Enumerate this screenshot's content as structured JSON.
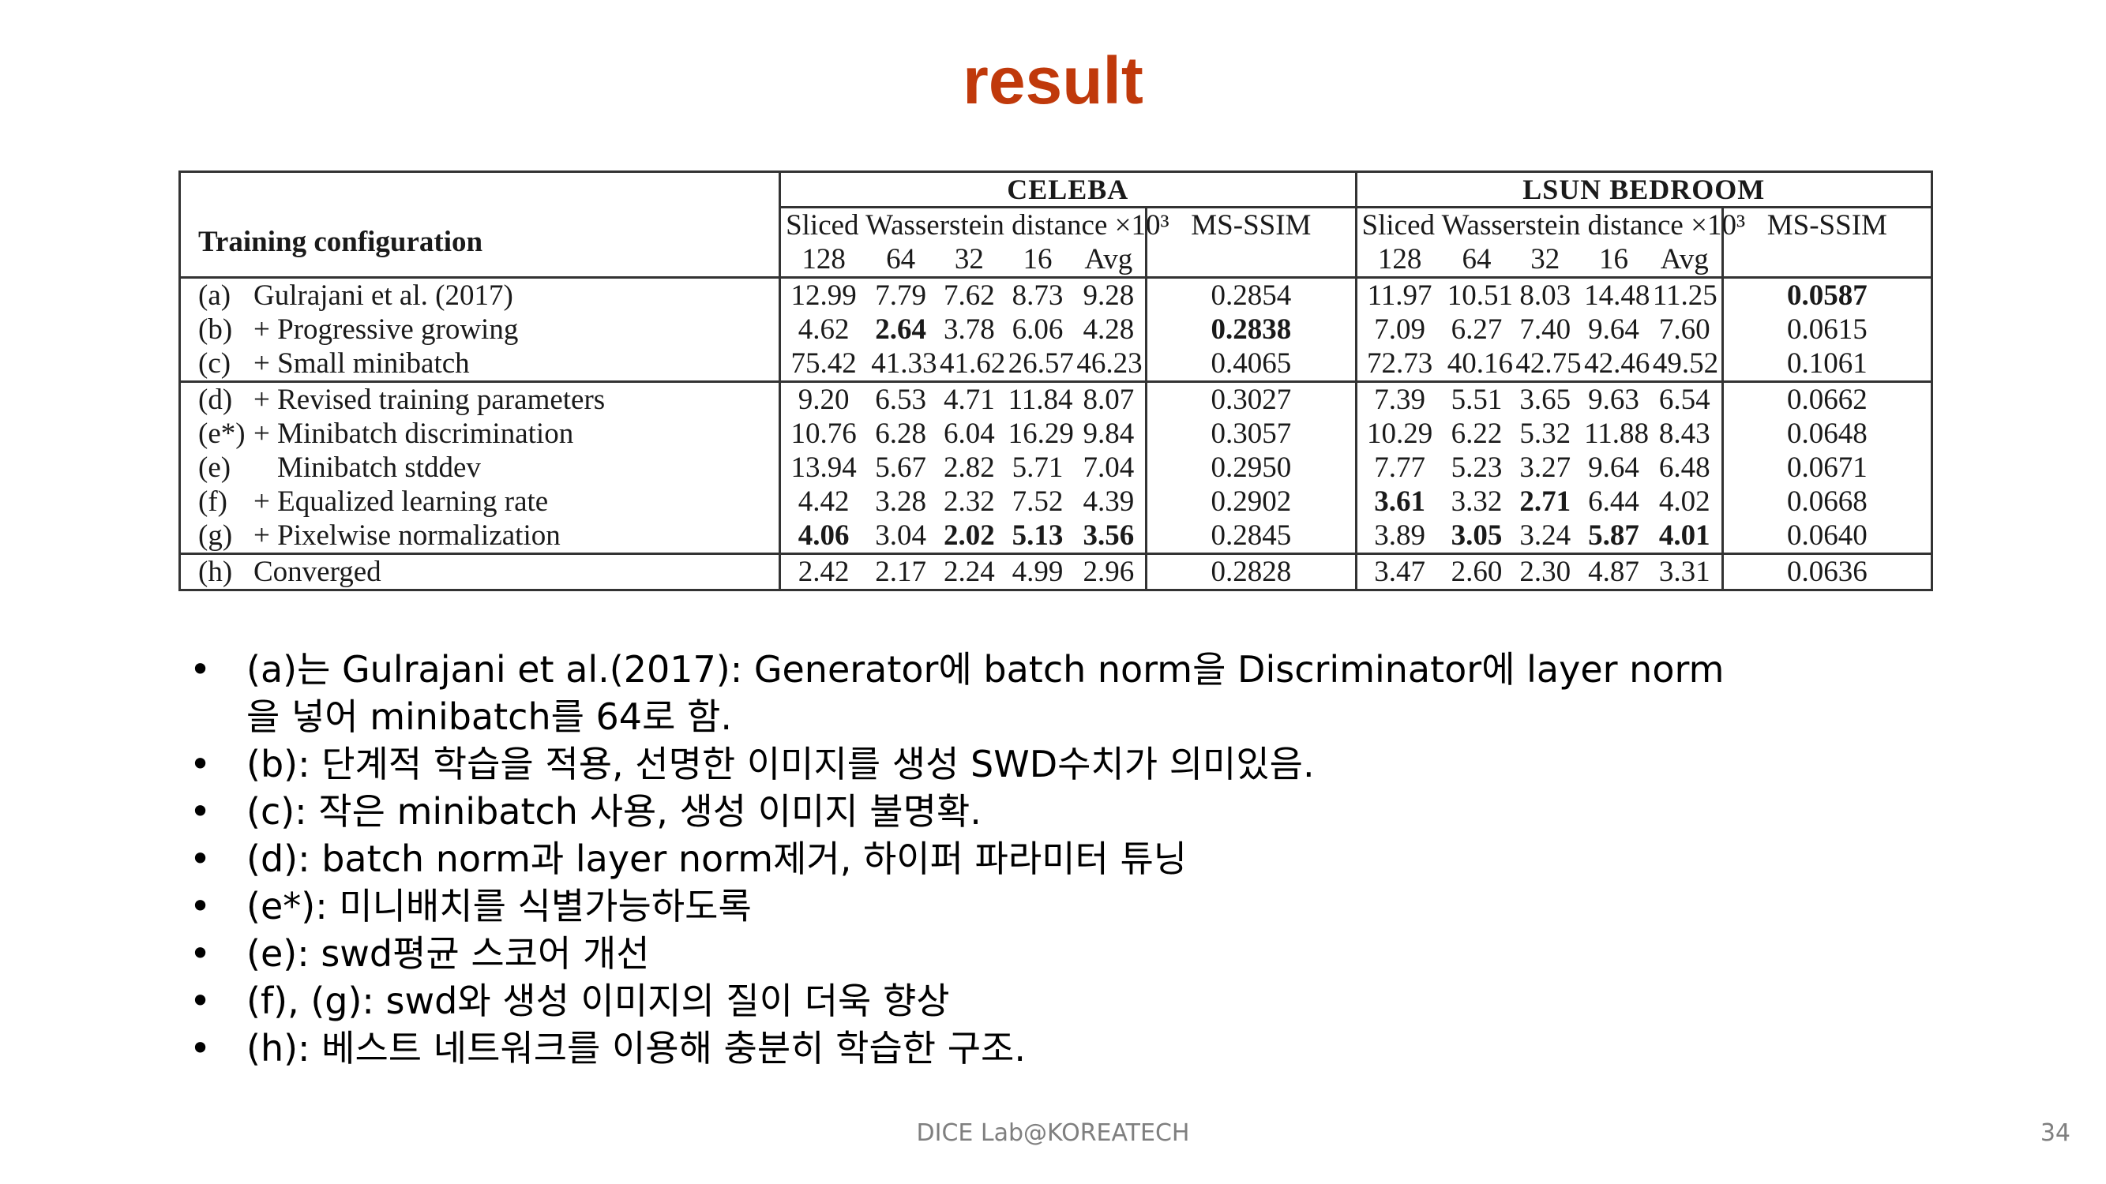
{
  "slide": {
    "title": "result",
    "title_color": "#C0390B",
    "footer": "DICE Lab@KOREATECH",
    "page_number": "34"
  },
  "table": {
    "config_header": "Training configuration",
    "group_celeba": "CELEBA",
    "group_lsun": "LSUN BEDROOM",
    "swd_label": "Sliced Wasserstein distance ×10³",
    "msssim_label": "MS-SSIM",
    "res_cols": [
      "128",
      "64",
      "32",
      "16",
      "Avg"
    ],
    "rows": [
      {
        "id": "(a)",
        "label": "Gulrajani et al. (2017)",
        "celeba": [
          "12.99",
          "7.79",
          "7.62",
          "8.73",
          "9.28"
        ],
        "celeba_ms": "0.2854",
        "lsun": [
          "11.97",
          "10.51",
          "8.03",
          "14.48",
          "11.25"
        ],
        "lsun_ms": "0.0587"
      },
      {
        "id": "(b)",
        "label": "+ Progressive growing",
        "celeba": [
          "4.62",
          "2.64",
          "3.78",
          "6.06",
          "4.28"
        ],
        "celeba_ms": "0.2838",
        "lsun": [
          "7.09",
          "6.27",
          "7.40",
          "9.64",
          "7.60"
        ],
        "lsun_ms": "0.0615"
      },
      {
        "id": "(c)",
        "label": "+ Small minibatch",
        "celeba": [
          "75.42",
          "41.33",
          "41.62",
          "26.57",
          "46.23"
        ],
        "celeba_ms": "0.4065",
        "lsun": [
          "72.73",
          "40.16",
          "42.75",
          "42.46",
          "49.52"
        ],
        "lsun_ms": "0.1061"
      },
      {
        "id": "(d)",
        "label": "+ Revised training parameters",
        "celeba": [
          "9.20",
          "6.53",
          "4.71",
          "11.84",
          "8.07"
        ],
        "celeba_ms": "0.3027",
        "lsun": [
          "7.39",
          "5.51",
          "3.65",
          "9.63",
          "6.54"
        ],
        "lsun_ms": "0.0662"
      },
      {
        "id": "(e*)",
        "label": "+ Minibatch discrimination",
        "celeba": [
          "10.76",
          "6.28",
          "6.04",
          "16.29",
          "9.84"
        ],
        "celeba_ms": "0.3057",
        "lsun": [
          "10.29",
          "6.22",
          "5.32",
          "11.88",
          "8.43"
        ],
        "lsun_ms": "0.0648"
      },
      {
        "id": "(e)",
        "label": "Minibatch stddev",
        "celeba": [
          "13.94",
          "5.67",
          "2.82",
          "5.71",
          "7.04"
        ],
        "celeba_ms": "0.2950",
        "lsun": [
          "7.77",
          "5.23",
          "3.27",
          "9.64",
          "6.48"
        ],
        "lsun_ms": "0.0671"
      },
      {
        "id": "(f)",
        "label": "+ Equalized learning rate",
        "celeba": [
          "4.42",
          "3.28",
          "2.32",
          "7.52",
          "4.39"
        ],
        "celeba_ms": "0.2902",
        "lsun": [
          "3.61",
          "3.32",
          "2.71",
          "6.44",
          "4.02"
        ],
        "lsun_ms": "0.0668"
      },
      {
        "id": "(g)",
        "label": "+ Pixelwise normalization",
        "celeba": [
          "4.06",
          "3.04",
          "2.02",
          "5.13",
          "3.56"
        ],
        "celeba_ms": "0.2845",
        "lsun": [
          "3.89",
          "3.05",
          "3.24",
          "5.87",
          "4.01"
        ],
        "lsun_ms": "0.0640"
      },
      {
        "id": "(h)",
        "label": "Converged",
        "celeba": [
          "2.42",
          "2.17",
          "2.24",
          "4.99",
          "2.96"
        ],
        "celeba_ms": "0.2828",
        "lsun": [
          "3.47",
          "2.60",
          "2.30",
          "4.87",
          "3.31"
        ],
        "lsun_ms": "0.0636"
      }
    ]
  },
  "bullets": [
    "(a)는 Gulrajani et al.(2017): Generator에 batch norm을 Discriminator에 layer norm을 넣어 minibatch를 64로 함.",
    "(b): 단계적 학습을 적용, 선명한 이미지를 생성 SWD수치가 의미있음.",
    "(c): 작은 minibatch 사용, 생성 이미지 불명확.",
    "(d): batch norm과 layer norm제거, 하이퍼 파라미터 튜닝",
    "(e*): 미니배치를 식별가능하도록",
    "(e): swd평균 스코어 개선",
    "(f), (g): swd와 생성 이미지의 질이 더욱 향상",
    "(h): 베스트 네트워크를 이용해 충분히 학습한 구조."
  ]
}
